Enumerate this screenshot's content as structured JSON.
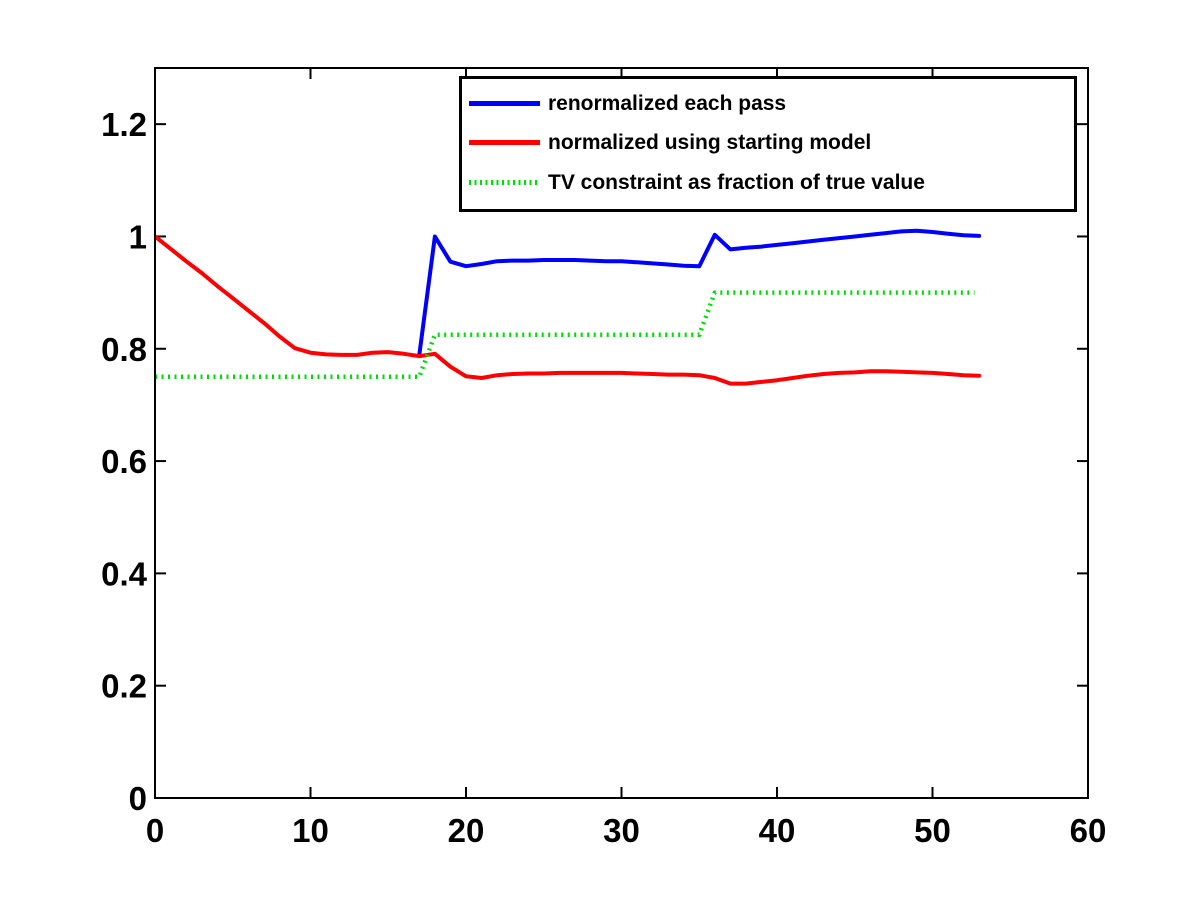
{
  "figure": {
    "background": "#ffffff",
    "axis_color": "#000000"
  },
  "chart_data": {
    "type": "line",
    "title": "",
    "xlabel": "",
    "ylabel": "",
    "grid": false,
    "xlim": [
      0,
      60
    ],
    "ylim": [
      0,
      1.3
    ],
    "x_ticks": [
      0,
      10,
      20,
      30,
      40,
      50,
      60
    ],
    "x_tick_labels": [
      "0",
      "10",
      "20",
      "30",
      "40",
      "50",
      "60"
    ],
    "y_ticks": [
      0,
      0.2,
      0.4,
      0.6,
      0.8,
      1,
      1.2
    ],
    "y_tick_labels": [
      "0",
      "0.2",
      "0.4",
      "0.6",
      "0.8",
      "1",
      "1.2"
    ],
    "legend_position": "north inside plot, top center-right",
    "series": [
      {
        "name": "renormalized each pass",
        "color": "#0000ff",
        "style": "solid",
        "line_width": 4,
        "x": [
          17,
          18,
          19,
          20,
          21,
          22,
          23,
          24,
          25,
          26,
          27,
          28,
          29,
          30,
          31,
          32,
          33,
          34,
          35,
          36,
          37,
          38,
          39,
          40,
          41,
          42,
          43,
          44,
          45,
          46,
          47,
          48,
          49,
          50,
          51,
          52,
          53
        ],
        "y": [
          0.789,
          1.0,
          0.955,
          0.947,
          0.951,
          0.956,
          0.957,
          0.957,
          0.958,
          0.958,
          0.958,
          0.957,
          0.956,
          0.956,
          0.954,
          0.952,
          0.95,
          0.948,
          0.947,
          1.003,
          0.977,
          0.98,
          0.982,
          0.985,
          0.988,
          0.991,
          0.994,
          0.997,
          1.0,
          1.003,
          1.006,
          1.009,
          1.01,
          1.008,
          1.005,
          1.002,
          1.001
        ]
      },
      {
        "name": "normalized using starting model",
        "color": "#ff0000",
        "style": "solid",
        "line_width": 4,
        "x": [
          0,
          1,
          2,
          3,
          4,
          5,
          6,
          7,
          8,
          9,
          10,
          11,
          12,
          13,
          14,
          15,
          16,
          17,
          18,
          19,
          20,
          21,
          22,
          23,
          24,
          25,
          26,
          27,
          28,
          29,
          30,
          31,
          32,
          33,
          34,
          35,
          36,
          37,
          38,
          39,
          40,
          41,
          42,
          43,
          44,
          45,
          46,
          47,
          48,
          49,
          50,
          51,
          52,
          53
        ],
        "y": [
          1.0,
          0.978,
          0.956,
          0.935,
          0.912,
          0.89,
          0.868,
          0.846,
          0.822,
          0.801,
          0.793,
          0.79,
          0.789,
          0.789,
          0.793,
          0.794,
          0.791,
          0.787,
          0.791,
          0.768,
          0.751,
          0.748,
          0.753,
          0.755,
          0.756,
          0.756,
          0.757,
          0.757,
          0.757,
          0.757,
          0.757,
          0.756,
          0.755,
          0.754,
          0.754,
          0.753,
          0.748,
          0.738,
          0.738,
          0.741,
          0.744,
          0.748,
          0.752,
          0.755,
          0.757,
          0.758,
          0.76,
          0.76,
          0.759,
          0.758,
          0.757,
          0.755,
          0.753,
          0.752
        ]
      },
      {
        "name": "TV constraint as fraction of true value",
        "color": "#00dd00",
        "style": "dotted",
        "line_width": 4.5,
        "x": [
          0,
          17,
          18,
          35,
          36,
          52.7
        ],
        "y": [
          0.75,
          0.75,
          0.825,
          0.825,
          0.9,
          0.9
        ]
      }
    ]
  }
}
